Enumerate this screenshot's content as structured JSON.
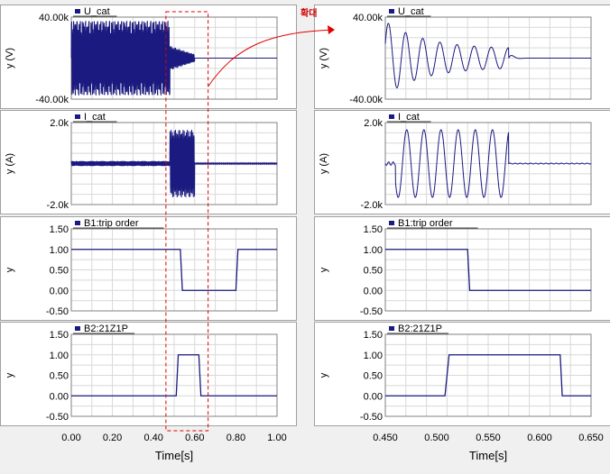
{
  "annotation": {
    "zoom_label": "확대"
  },
  "colors": {
    "trace": "#1a1a80",
    "highlight": "#e00000",
    "panel_bg": "#ffffff",
    "grid": "#d8d8d8"
  },
  "chart_data": [
    {
      "type": "line",
      "column": "left",
      "series_name": "U_cat",
      "ylabel": "y (V)",
      "ylim": [
        -40000,
        40000
      ],
      "yticks": [
        "40.00k",
        "-40.00k"
      ],
      "ytick_values": [
        40000,
        -40000
      ],
      "xlim": [
        0,
        1
      ],
      "signal": "bursty_oscillation",
      "amplitude_pre": 36000,
      "amplitude_mid": 12000,
      "t_burst_end": 0.48,
      "t_decay_end": 0.6,
      "steady_value": 0
    },
    {
      "type": "line",
      "column": "left",
      "series_name": "I_cat",
      "ylabel": "y (A)",
      "ylim": [
        -2000,
        2000
      ],
      "yticks": [
        "2.0k",
        "-2.0k"
      ],
      "ytick_values": [
        2000,
        -2000
      ],
      "xlim": [
        0,
        1
      ],
      "signal": "fault_current",
      "ripple": 120,
      "t_fault_start": 0.48,
      "t_fault_end": 0.6,
      "fault_amplitude": 1650,
      "steady_value": 0
    },
    {
      "type": "line",
      "column": "left",
      "series_name": "B1:trip order",
      "ylabel": "y",
      "ylim": [
        -0.5,
        1.5
      ],
      "yticks": [
        "1.50",
        "1.00",
        "0.50",
        "0.00",
        "-0.50"
      ],
      "ytick_values": [
        1.5,
        1.0,
        0.5,
        0.0,
        -0.5
      ],
      "xlim": [
        0,
        1
      ],
      "signal": "step",
      "points": [
        [
          0,
          1
        ],
        [
          0.53,
          1
        ],
        [
          0.54,
          0
        ],
        [
          0.8,
          0
        ],
        [
          0.81,
          1
        ],
        [
          1,
          1
        ]
      ]
    },
    {
      "type": "line",
      "column": "left",
      "series_name": "B2:21Z1P",
      "ylabel": "y",
      "ylim": [
        -0.5,
        1.5
      ],
      "yticks": [
        "1.50",
        "1.00",
        "0.50",
        "0.00",
        "-0.50"
      ],
      "ytick_values": [
        1.5,
        1.0,
        0.5,
        0.0,
        -0.5
      ],
      "xlim": [
        0,
        1
      ],
      "signal": "step",
      "points": [
        [
          0,
          0
        ],
        [
          0.51,
          0
        ],
        [
          0.52,
          1
        ],
        [
          0.62,
          1
        ],
        [
          0.63,
          0
        ],
        [
          1,
          0
        ]
      ],
      "xticks": [
        "0.00",
        "0.20",
        "0.40",
        "0.60",
        "0.80",
        "1.00"
      ],
      "xtick_values": [
        0,
        0.2,
        0.4,
        0.6,
        0.8,
        1.0
      ],
      "xlabel": "Time[s]"
    },
    {
      "type": "line",
      "column": "right",
      "series_name": "U_cat",
      "ylabel": "y (V)",
      "ylim": [
        -40000,
        40000
      ],
      "yticks": [
        "40.00k",
        "-40.00k"
      ],
      "ytick_values": [
        40000,
        -40000
      ],
      "xlim": [
        0.45,
        0.65
      ],
      "signal": "damped_oscillation",
      "freq_hz": 60,
      "amplitude_start": 36000,
      "amplitude_settled": 10000,
      "t_settle_end": 0.57,
      "steady_value": 0
    },
    {
      "type": "line",
      "column": "right",
      "series_name": "I_cat",
      "ylabel": "y (A)",
      "ylim": [
        -2000,
        2000
      ],
      "yticks": [
        "2.0k",
        "-2.0k"
      ],
      "ytick_values": [
        2000,
        -2000
      ],
      "xlim": [
        0.45,
        0.65
      ],
      "signal": "fault_current",
      "freq_hz": 60,
      "t_fault_start": 0.46,
      "t_fault_end": 0.57,
      "fault_amplitude": 1650,
      "ripple": 80,
      "steady_value": 0
    },
    {
      "type": "line",
      "column": "right",
      "series_name": "B1:trip order",
      "ylabel": "y",
      "ylim": [
        -0.5,
        1.5
      ],
      "yticks": [
        "1.50",
        "1.00",
        "0.50",
        "0.00",
        "-0.50"
      ],
      "ytick_values": [
        1.5,
        1.0,
        0.5,
        0.0,
        -0.5
      ],
      "xlim": [
        0.45,
        0.65
      ],
      "signal": "step",
      "points": [
        [
          0.45,
          1
        ],
        [
          0.53,
          1
        ],
        [
          0.532,
          0
        ],
        [
          0.65,
          0
        ]
      ]
    },
    {
      "type": "line",
      "column": "right",
      "series_name": "B2:21Z1P",
      "ylabel": "y",
      "ylim": [
        -0.5,
        1.5
      ],
      "yticks": [
        "1.50",
        "1.00",
        "0.50",
        "0.00",
        "-0.50"
      ],
      "ytick_values": [
        1.5,
        1.0,
        0.5,
        0.0,
        -0.5
      ],
      "xlim": [
        0.45,
        0.65
      ],
      "signal": "step",
      "points": [
        [
          0.45,
          0
        ],
        [
          0.508,
          0
        ],
        [
          0.512,
          1
        ],
        [
          0.62,
          1
        ],
        [
          0.622,
          0
        ],
        [
          0.65,
          0
        ]
      ],
      "xticks": [
        "0.450",
        "0.500",
        "0.550",
        "0.600",
        "0.650"
      ],
      "xtick_values": [
        0.45,
        0.5,
        0.55,
        0.6,
        0.65
      ],
      "xlabel": "Time[s]"
    }
  ]
}
